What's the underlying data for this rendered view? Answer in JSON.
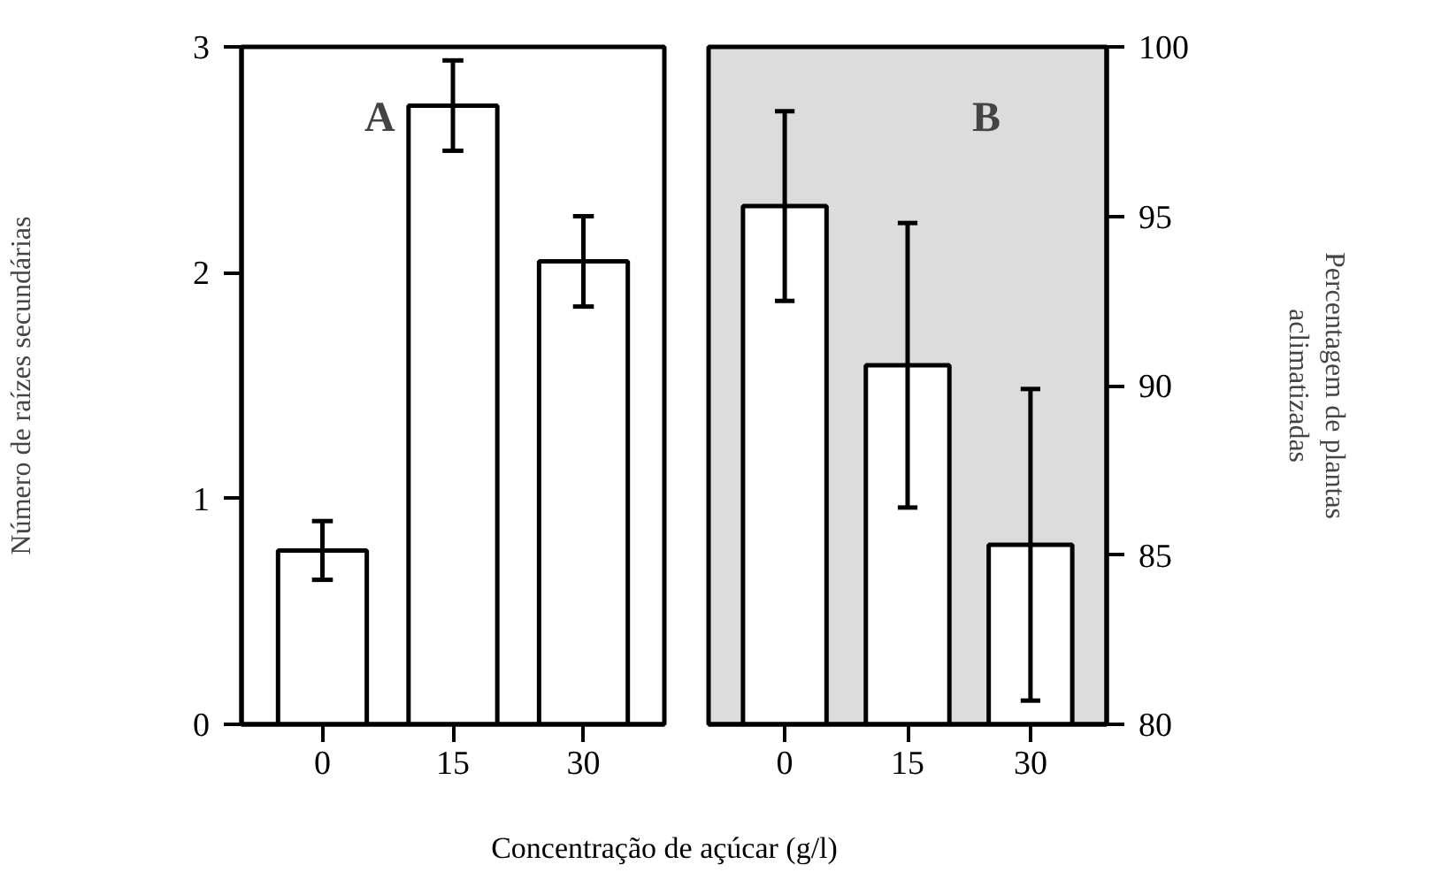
{
  "chart_data": [
    {
      "type": "bar",
      "categories": [
        "0",
        "15",
        "30"
      ],
      "xlabel": "Concentração de açúcar (g/l)",
      "ylabel": "Número de raízes secundárias",
      "ylim": [
        0,
        3
      ],
      "yticks": [
        0,
        1,
        2,
        3
      ],
      "grid": false,
      "annotations": [
        "A"
      ],
      "series": [
        {
          "color": "#ffffff",
          "values": [
            0.77,
            2.74,
            2.05
          ],
          "errors": [
            0.13,
            0.2,
            0.2
          ]
        }
      ]
    },
    {
      "type": "bar",
      "categories": [
        "0",
        "15",
        "30"
      ],
      "y2label": "Percentagem de plantas\naclimatizadas",
      "y2lim": [
        80,
        100
      ],
      "y2ticks": [
        80,
        85,
        90,
        95,
        100
      ],
      "grid": false,
      "annotations": [
        "B"
      ],
      "series": [
        {
          "color": "#ffffff",
          "axis": "y2",
          "values": [
            95.3,
            90.6,
            85.3
          ],
          "errors": [
            2.8,
            4.2,
            4.6
          ]
        }
      ]
    }
  ]
}
